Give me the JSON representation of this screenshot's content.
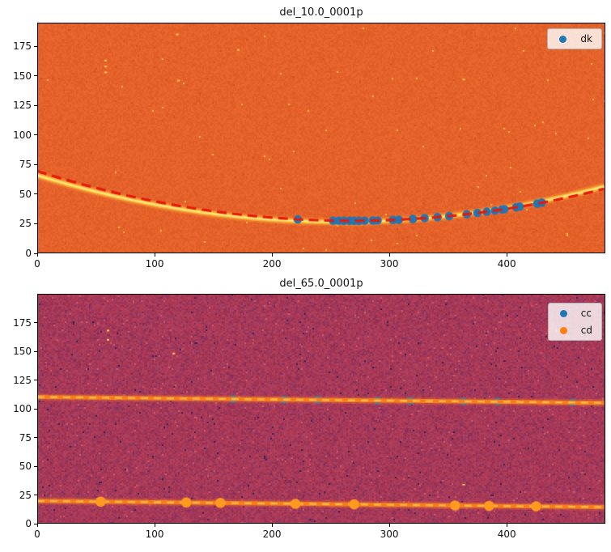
{
  "figure": {
    "background": "#ffffff"
  },
  "chart_data": [
    {
      "type": "heatmap+scatter",
      "title": "del_10.0_0001p",
      "xlabel": "",
      "ylabel": "",
      "xlim": [
        0,
        484
      ],
      "ylim": [
        0,
        195
      ],
      "xticks": [
        0,
        100,
        200,
        300,
        400
      ],
      "yticks": [
        0,
        25,
        50,
        75,
        100,
        125,
        150,
        175
      ],
      "grid": false,
      "image_background": {
        "base_rgb": [
          229,
          99,
          43
        ],
        "jitter": 14,
        "bright_speck_rgb": [
          251,
          182,
          70
        ],
        "bright_p": 0.0015,
        "dark_speck_rgb": [
          205,
          82,
          36
        ],
        "dark_p": 0.003
      },
      "trace_curve": {
        "desc": "bright emission trace (parabola)",
        "vertex_x": 258,
        "vertex_y": 26.5,
        "quad_a": 0.000593,
        "color_glow": "rgba(247,148,48,0.45)",
        "color_mid": "rgba(252,186,60,0.75)",
        "color_core": "#FFD44A",
        "color_peak": "#FFE98C"
      },
      "fit_curve": {
        "desc": "dashed polynomial fit",
        "vertex_x": 268,
        "vertex_y": 27.5,
        "quad_a": 0.000585,
        "color": "#E51A0C",
        "dash": [
          12,
          7
        ],
        "width": 3.2
      },
      "series": [
        {
          "name": "dk",
          "marker": "circle",
          "color": "#1F77B4",
          "radius": 5.2,
          "x": [
            222,
            252,
            257,
            261,
            266,
            270,
            274,
            279,
            286,
            290,
            303,
            308,
            320,
            330,
            341,
            351,
            366,
            375,
            383,
            390,
            396,
            398,
            408,
            411,
            426,
            430
          ],
          "y": [
            28.7,
            27.6,
            27.6,
            27.5,
            27.5,
            27.5,
            27.5,
            27.6,
            27.7,
            27.8,
            28.2,
            28.4,
            29.1,
            29.8,
            30.6,
            31.5,
            33.1,
            34.2,
            35.2,
            36.2,
            37.1,
            37.4,
            39.0,
            39.5,
            42.1,
            42.9
          ]
        }
      ],
      "artifacts": [
        {
          "x": 58,
          "y": 163
        },
        {
          "x": 58,
          "y": 158
        },
        {
          "x": 58,
          "y": 153
        },
        {
          "x": 119,
          "y": 185
        },
        {
          "x": 120,
          "y": 146
        },
        {
          "x": 171,
          "y": 172
        },
        {
          "x": 363,
          "y": 147
        }
      ],
      "legend": {
        "position": "upper-right",
        "entries": [
          {
            "label": "dk",
            "color": "#1F77B4"
          }
        ]
      }
    },
    {
      "type": "heatmap+scatter",
      "title": "del_65.0_0001p",
      "xlabel": "",
      "ylabel": "",
      "xlim": [
        0,
        484
      ],
      "ylim": [
        0,
        200
      ],
      "xticks": [
        0,
        100,
        200,
        300,
        400
      ],
      "yticks": [
        0,
        25,
        50,
        75,
        100,
        125,
        150,
        175
      ],
      "grid": false,
      "image_background": {
        "base_rgb": [
          178,
          60,
          86
        ],
        "jitter": 16,
        "purple_rgb": [
          120,
          47,
          100
        ],
        "bright_speck_rgb": [
          208,
          90,
          106
        ],
        "bright_p": 0.008,
        "dark_speck_rgb": [
          50,
          37,
          85
        ],
        "dark_p": 0.005
      },
      "lines": [
        {
          "name": "upper_trace",
          "y_start": 110.2,
          "y_end": 105.1,
          "color_core": "#FB7C12",
          "dash_overlay": "#FFB843",
          "dash": [
            9,
            7
          ]
        },
        {
          "name": "lower_trace",
          "y_start": 19.8,
          "y_end": 14.4,
          "color_core": "#FB7C12",
          "dash_overlay": "#FFB843",
          "dash": [
            9,
            7
          ]
        }
      ],
      "series": [
        {
          "name": "cc",
          "marker": "circle",
          "color": "#1F77B4",
          "radius": 5.0,
          "on_line": 0,
          "under_line": true,
          "x": [
            167,
            210,
            239,
            290,
            318,
            363,
            392,
            456
          ],
          "y": [
            108.4,
            108.0,
            107.7,
            107.1,
            106.8,
            106.4,
            106.1,
            105.4
          ]
        },
        {
          "name": "cd",
          "marker": "circle",
          "color": "#FF9A1F",
          "radius": 6.3,
          "on_line": 1,
          "under_line": false,
          "x": [
            54,
            127,
            156,
            220,
            270,
            356,
            385,
            425
          ],
          "y": [
            19.2,
            18.4,
            18.1,
            17.3,
            16.8,
            15.8,
            15.5,
            15.1
          ]
        }
      ],
      "artifacts": [
        {
          "x": 60,
          "y": 168
        },
        {
          "x": 60,
          "y": 160
        },
        {
          "x": 116,
          "y": 148
        },
        {
          "x": 363,
          "y": 34
        }
      ],
      "legend": {
        "position": "upper-right",
        "entries": [
          {
            "label": "cc",
            "color": "#1F77B4"
          },
          {
            "label": "cd",
            "color": "#FF7F0E"
          }
        ]
      }
    }
  ]
}
